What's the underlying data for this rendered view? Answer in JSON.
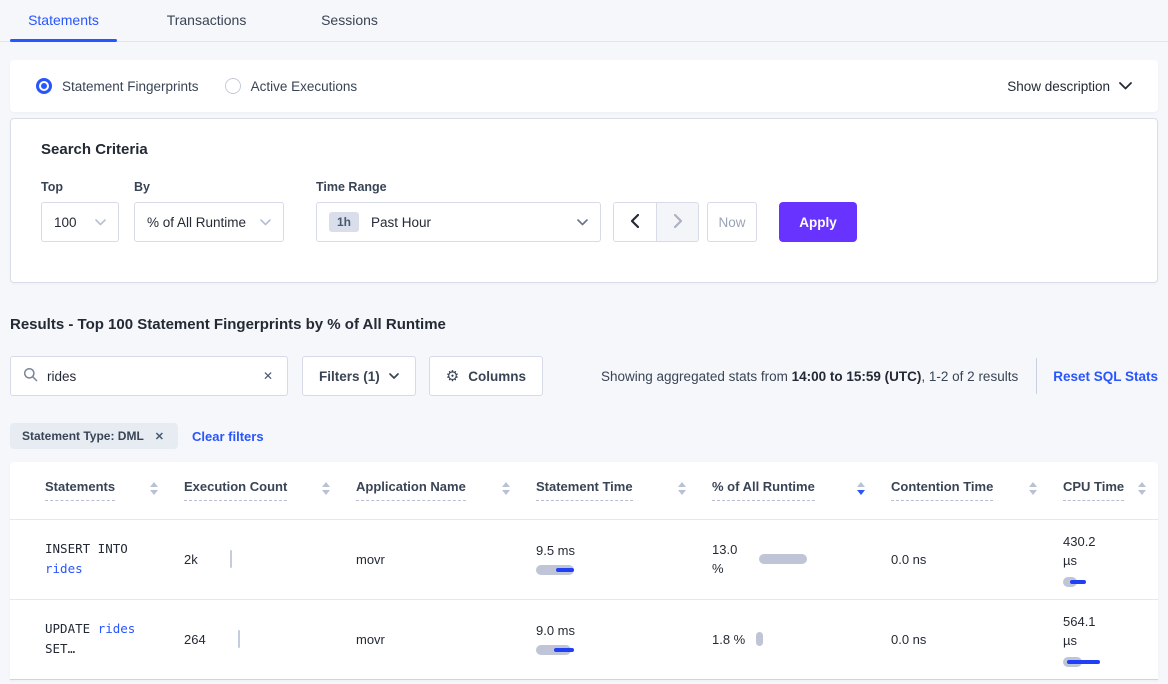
{
  "tabs": [
    {
      "label": "Statements",
      "active": true
    },
    {
      "label": "Transactions",
      "active": false
    },
    {
      "label": "Sessions",
      "active": false
    }
  ],
  "view_toggle": {
    "options": [
      {
        "label": "Statement Fingerprints",
        "selected": true
      },
      {
        "label": "Active Executions",
        "selected": false
      }
    ],
    "show_description": "Show description"
  },
  "search_criteria": {
    "title": "Search Criteria",
    "top_label": "Top",
    "top_value": "100",
    "by_label": "By",
    "by_value": "% of All Runtime",
    "time_range_label": "Time Range",
    "time_badge": "1h",
    "time_value": "Past Hour",
    "now_label": "Now",
    "apply_label": "Apply"
  },
  "results": {
    "heading": "Results - Top 100 Statement Fingerprints by % of All Runtime",
    "search_value": "rides",
    "filters_label": "Filters (1)",
    "columns_label": "Columns",
    "stats_prefix": "Showing aggregated stats from ",
    "stats_range": "14:00 to 15:59 (UTC)",
    "stats_suffix": ", 1-2 of 2 results",
    "reset_label": "Reset SQL Stats",
    "chip_label": "Statement Type: DML",
    "clear_filters_label": "Clear filters"
  },
  "icons": {
    "gear_glyph": "⚙",
    "close_glyph": "✕"
  },
  "colors": {
    "accent_blue": "#2955ff",
    "apply_purple": "#6933ff",
    "bar_gray": "#bfc5d6",
    "bar_blue": "#2140f5",
    "page_bg": "#f5f7fa"
  },
  "table": {
    "columns": [
      {
        "label": "Statements",
        "sorted": ""
      },
      {
        "label": "Execution Count",
        "sorted": ""
      },
      {
        "label": "Application Name",
        "sorted": ""
      },
      {
        "label": "Statement Time",
        "sorted": ""
      },
      {
        "label": "% of All Runtime",
        "sorted": "desc"
      },
      {
        "label": "Contention Time",
        "sorted": ""
      },
      {
        "label": "CPU Time",
        "sorted": ""
      }
    ],
    "rows": [
      {
        "sql": {
          "line1_code": "INSERT INTO",
          "line1_link": "",
          "line2_code": "",
          "line2_link": "rides"
        },
        "execution_count": "2k",
        "application": "movr",
        "statement_time": "9.5 ms",
        "runtime_pct": "13.0 %",
        "contention_time": "0.0 ns",
        "cpu_time": "430.2 µs",
        "bars": {
          "stmt_gray_w": 38,
          "stmt_blue_l": 20,
          "stmt_blue_w": 18,
          "pct_w": 48,
          "cpu_gray_w": 14,
          "cpu_blue_l": 7,
          "cpu_blue_w": 16
        }
      },
      {
        "sql": {
          "line1_code": "UPDATE ",
          "line1_link": "rides",
          "line2_code": "SET…",
          "line2_link": ""
        },
        "execution_count": "264",
        "application": "movr",
        "statement_time": "9.0 ms",
        "runtime_pct": "1.8 %",
        "contention_time": "0.0 ns",
        "cpu_time": "564.1 µs",
        "bars": {
          "stmt_gray_w": 35,
          "stmt_blue_l": 18,
          "stmt_blue_w": 20,
          "pct_w": 7,
          "cpu_gray_w": 19,
          "cpu_blue_l": 4,
          "cpu_blue_w": 33
        }
      }
    ]
  }
}
